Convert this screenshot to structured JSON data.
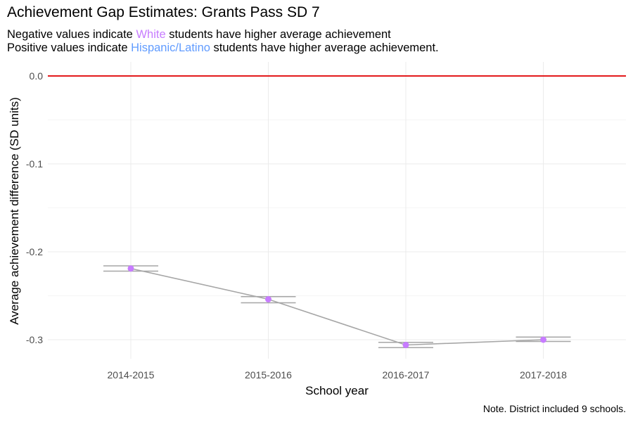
{
  "title": "Achievement Gap Estimates: Grants Pass SD 7",
  "subtitle": {
    "line1_pre": "Negative values indicate ",
    "line1_group": "White",
    "line1_post": " students have higher average achievement",
    "line2_pre": "Positive values indicate ",
    "line2_group": "Hispanic/Latino",
    "line2_post": " students have higher average achievement."
  },
  "note": "Note. District included 9 schools.",
  "colors": {
    "white_group": "#c77cff",
    "hispanic_group": "#619cff",
    "zero_line": "#e31a1c",
    "points": "#c77cff",
    "line": "#a6a6a6",
    "grid": "#ebebeb"
  },
  "chart_data": {
    "type": "line",
    "title": "Achievement Gap Estimates: Grants Pass SD 7",
    "xlabel": "School year",
    "ylabel": "Average achievement difference (SD units)",
    "categories": [
      "2014-2015",
      "2015-2016",
      "2016-2017",
      "2017-2018"
    ],
    "values": [
      -0.219,
      -0.254,
      -0.306,
      -0.3
    ],
    "interval_low": [
      -0.222,
      -0.258,
      -0.309,
      -0.302
    ],
    "interval_high": [
      -0.216,
      -0.251,
      -0.303,
      -0.297
    ],
    "reference_line": 0.0,
    "ylim": [
      -0.3,
      0.0
    ],
    "yticks": [
      0.0,
      -0.1,
      -0.2,
      -0.3
    ],
    "ytick_labels": [
      "0.0",
      "-0.1",
      "-0.2",
      "-0.3"
    ],
    "grid": true
  }
}
